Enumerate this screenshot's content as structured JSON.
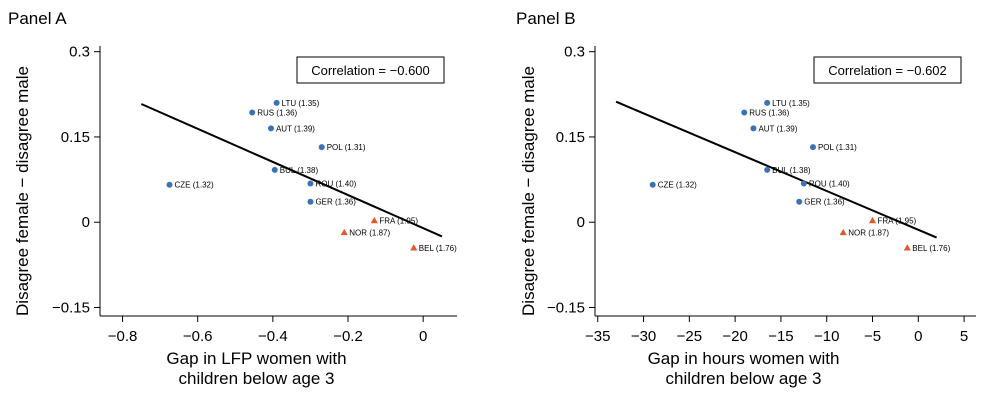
{
  "chart_data": [
    {
      "type": "scatter",
      "panel_title": "Panel A",
      "xlabel_lines": [
        "Gap in LFP women with",
        "children below age 3"
      ],
      "ylabel": "Disagree female − disagree male",
      "xlim": [
        -0.86,
        0.09
      ],
      "ylim": [
        -0.165,
        0.31
      ],
      "xticks": [
        -0.8,
        -0.6,
        -0.4,
        -0.2,
        0
      ],
      "xtick_labels": [
        "−0.8",
        "−0.6",
        "−0.4",
        "−0.2",
        "0"
      ],
      "yticks": [
        -0.15,
        0,
        0.15,
        0.3
      ],
      "ytick_labels": [
        "−0.15",
        "0",
        "0.15",
        "0.3"
      ],
      "annotation": "Correlation = −0.600",
      "fit_line": {
        "x": [
          -0.75,
          0.05
        ],
        "y": [
          0.208,
          -0.025
        ]
      },
      "series": [
        {
          "marker": "circle",
          "color": "#3a73b5",
          "points": [
            {
              "label": "LTU (1.35)",
              "x": -0.39,
              "y": 0.21
            },
            {
              "label": "RUS (1.36)",
              "x": -0.455,
              "y": 0.193
            },
            {
              "label": "AUT (1.39)",
              "x": -0.405,
              "y": 0.165
            },
            {
              "label": "POL (1.31)",
              "x": -0.27,
              "y": 0.132
            },
            {
              "label": "BUL (1.38)",
              "x": -0.395,
              "y": 0.092
            },
            {
              "label": "ROU (1.40)",
              "x": -0.3,
              "y": 0.068
            },
            {
              "label": "CZE (1.32)",
              "x": -0.675,
              "y": 0.066
            },
            {
              "label": "GER (1.36)",
              "x": -0.3,
              "y": 0.036
            }
          ]
        },
        {
          "marker": "triangle",
          "color": "#e05a2b",
          "points": [
            {
              "label": "FRA (1.95)",
              "x": -0.13,
              "y": 0.003
            },
            {
              "label": "NOR (1.87)",
              "x": -0.21,
              "y": -0.018
            },
            {
              "label": "BEL (1.76)",
              "x": -0.025,
              "y": -0.045
            }
          ]
        }
      ]
    },
    {
      "type": "scatter",
      "panel_title": "Panel B",
      "xlabel_lines": [
        "Gap in hours women with",
        "children below age 3"
      ],
      "ylabel": "Disagree female − disagree male",
      "xlim": [
        -35.3,
        6.3
      ],
      "ylim": [
        -0.165,
        0.31
      ],
      "xticks": [
        -35,
        -30,
        -25,
        -20,
        -15,
        -10,
        -5,
        0,
        5
      ],
      "xtick_labels": [
        "−35",
        "−30",
        "−25",
        "−20",
        "−15",
        "−10",
        "−5",
        "0",
        "5"
      ],
      "yticks": [
        -0.15,
        0,
        0.15,
        0.3
      ],
      "ytick_labels": [
        "−0.15",
        "0",
        "0.15",
        "0.3"
      ],
      "annotation": "Correlation = −0.602",
      "fit_line": {
        "x": [
          -33,
          2
        ],
        "y": [
          0.212,
          -0.027
        ]
      },
      "series": [
        {
          "marker": "circle",
          "color": "#3a73b5",
          "points": [
            {
              "label": "LTU (1.35)",
              "x": -16.5,
              "y": 0.21
            },
            {
              "label": "RUS (1.36)",
              "x": -19,
              "y": 0.193
            },
            {
              "label": "AUT (1.39)",
              "x": -18,
              "y": 0.165
            },
            {
              "label": "POL (1.31)",
              "x": -11.5,
              "y": 0.132
            },
            {
              "label": "BUL (1.38)",
              "x": -16.5,
              "y": 0.092
            },
            {
              "label": "ROU (1.40)",
              "x": -12.5,
              "y": 0.068
            },
            {
              "label": "CZE (1.32)",
              "x": -29,
              "y": 0.066
            },
            {
              "label": "GER (1.36)",
              "x": -13,
              "y": 0.036
            }
          ]
        },
        {
          "marker": "triangle",
          "color": "#e05a2b",
          "points": [
            {
              "label": "FRA (1.95)",
              "x": -5,
              "y": 0.003
            },
            {
              "label": "NOR (1.87)",
              "x": -8.2,
              "y": -0.018
            },
            {
              "label": "BEL (1.76)",
              "x": -1.2,
              "y": -0.045
            }
          ]
        }
      ]
    }
  ]
}
